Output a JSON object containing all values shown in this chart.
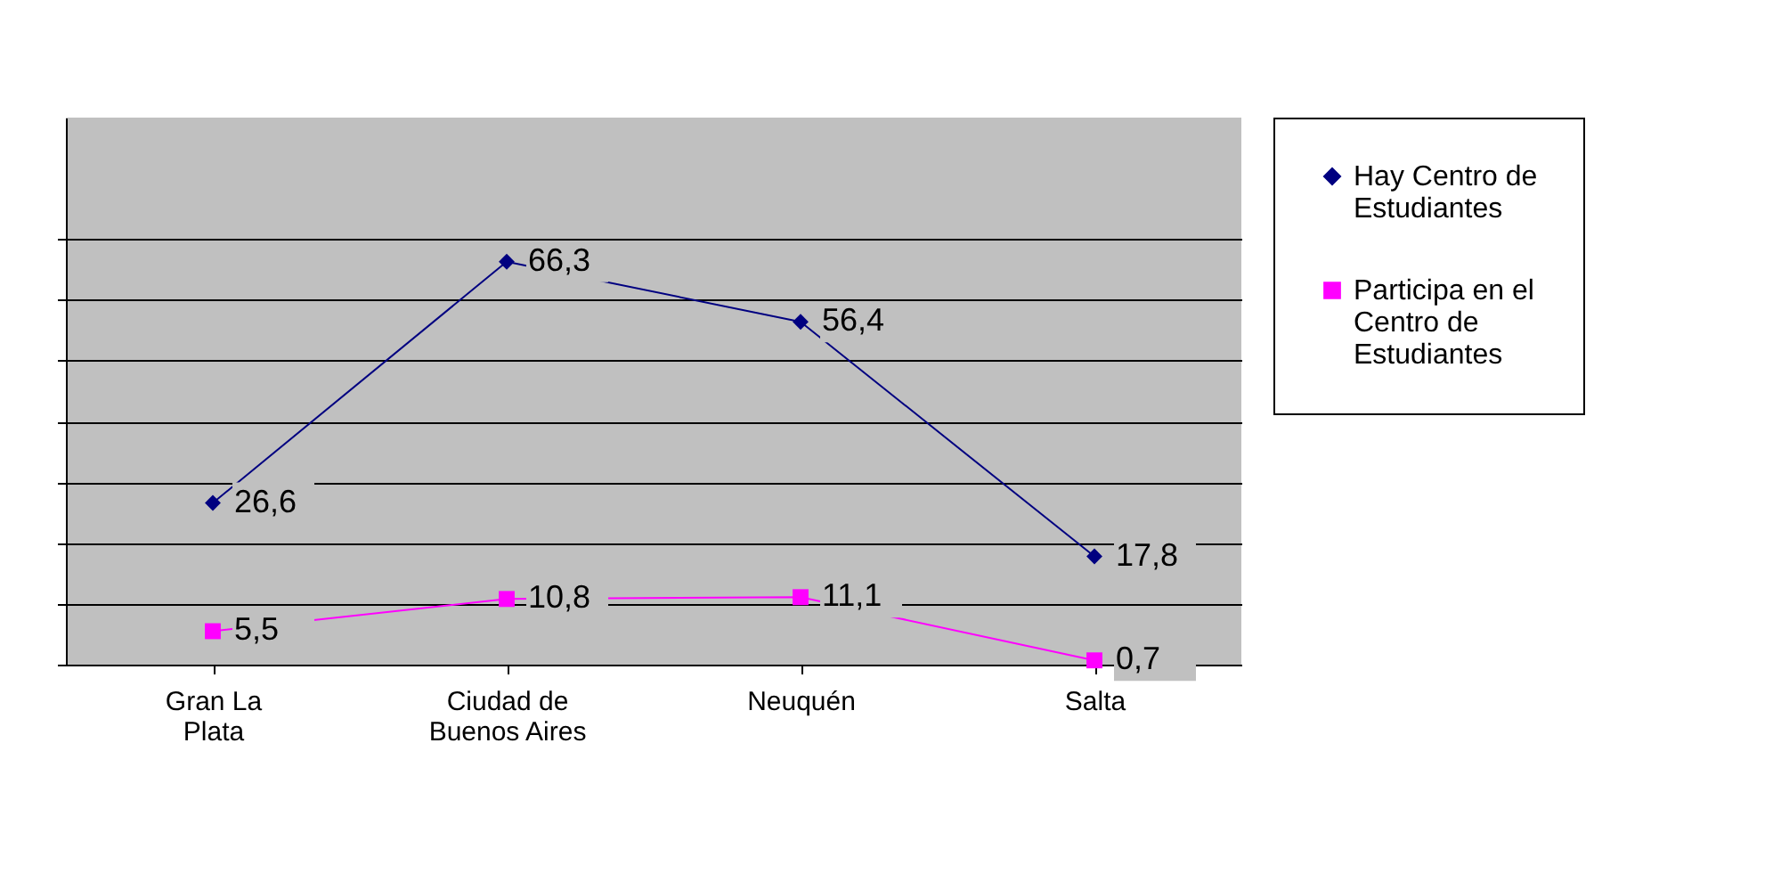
{
  "chart_data": {
    "type": "line",
    "categories": [
      "Gran La Plata",
      "Ciudad de Buenos Aires",
      "Neuquén",
      "Salta"
    ],
    "ylim": [
      0,
      90
    ],
    "yticks": [
      {
        "value": 0,
        "label": null
      },
      {
        "value": 10,
        "label": null
      },
      {
        "value": 20,
        "label": null
      },
      {
        "value": 30,
        "label": null
      },
      {
        "value": 40,
        "label": null
      },
      {
        "value": 50,
        "label": null
      },
      {
        "value": 60,
        "label": null
      },
      {
        "value": 70,
        "label": null
      }
    ],
    "grid": "y",
    "legend": "right",
    "line_style": "solid",
    "series": [
      {
        "name": "Hay Centro de Estudiantes",
        "color": "#000080",
        "marker": "diamond",
        "values": [
          26.6,
          66.3,
          56.4,
          17.8
        ],
        "value_labels": [
          "26,6",
          "66,3",
          "56,4",
          "17,8"
        ]
      },
      {
        "name": "Participa en el Centro de Estudiantes",
        "color": "#ff00ff",
        "marker": "square",
        "values": [
          5.5,
          10.8,
          11.1,
          0.7
        ],
        "value_labels": [
          "5,5",
          "10,8",
          "11,1",
          "0,7"
        ]
      }
    ]
  }
}
